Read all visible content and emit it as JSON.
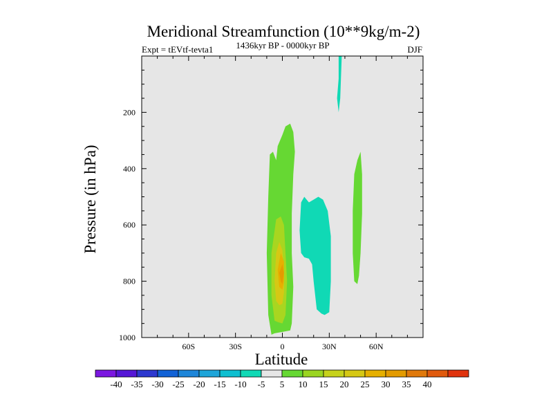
{
  "chart_data": {
    "type": "contour",
    "title": "Meridional Streamfunction (10**9kg/m-2)",
    "subtitle_left": "Expt = tEVtf-tevta1",
    "subtitle_center": "1436kyr BP - 0000kyr BP",
    "subtitle_right": "DJF",
    "xlabel": "Latitude",
    "ylabel": "Pressure (in hPa)",
    "xlim": [
      -90,
      90
    ],
    "ylim": [
      0,
      1000
    ],
    "y_inverted": true,
    "x_ticks": [
      {
        "value": -60,
        "label": "60S"
      },
      {
        "value": -30,
        "label": "30S"
      },
      {
        "value": 0,
        "label": "0"
      },
      {
        "value": 30,
        "label": "30N"
      },
      {
        "value": 60,
        "label": "60N"
      }
    ],
    "y_ticks": [
      {
        "value": 200,
        "label": "200"
      },
      {
        "value": 400,
        "label": "400"
      },
      {
        "value": 600,
        "label": "600"
      },
      {
        "value": 800,
        "label": "800"
      },
      {
        "value": 1000,
        "label": "1000"
      }
    ],
    "background_color": "#e6e6e6",
    "regions": [
      {
        "name": "equatorial-positive-outer",
        "level": 5,
        "color": "#66d833",
        "outline": [
          [
            -7,
            990
          ],
          [
            -9,
            920
          ],
          [
            -10,
            700
          ],
          [
            -9,
            500
          ],
          [
            -8,
            350
          ],
          [
            -6,
            340
          ],
          [
            -4,
            370
          ],
          [
            -3,
            320
          ],
          [
            0,
            280
          ],
          [
            2,
            250
          ],
          [
            5,
            240
          ],
          [
            7,
            270
          ],
          [
            8,
            340
          ],
          [
            7,
            420
          ],
          [
            6,
            560
          ],
          [
            6,
            700
          ],
          [
            7,
            820
          ],
          [
            6,
            950
          ],
          [
            5,
            975
          ],
          [
            0,
            980
          ],
          [
            -5,
            985
          ]
        ]
      },
      {
        "name": "equatorial-positive-10",
        "level": 10,
        "color": "#a8d620",
        "outline": [
          [
            -5,
            940
          ],
          [
            -7,
            850
          ],
          [
            -7,
            700
          ],
          [
            -4,
            580
          ],
          [
            -1,
            570
          ],
          [
            1,
            600
          ],
          [
            2,
            700
          ],
          [
            3,
            800
          ],
          [
            2,
            920
          ],
          [
            0,
            950
          ],
          [
            -3,
            945
          ]
        ]
      },
      {
        "name": "equatorial-positive-15",
        "level": 15,
        "color": "#d6c814",
        "outline": [
          [
            -4,
            870
          ],
          [
            -5,
            800
          ],
          [
            -4,
            700
          ],
          [
            -2,
            660
          ],
          [
            0,
            690
          ],
          [
            1,
            760
          ],
          [
            1,
            840
          ],
          [
            0,
            880
          ],
          [
            -2,
            885
          ]
        ]
      },
      {
        "name": "equatorial-positive-20",
        "level": 20,
        "color": "#e6b000",
        "outline": [
          [
            -2,
            820
          ],
          [
            -3,
            760
          ],
          [
            -1,
            700
          ],
          [
            1,
            730
          ],
          [
            1,
            800
          ],
          [
            0,
            830
          ]
        ]
      },
      {
        "name": "equatorial-positive-25",
        "level": 25,
        "color": "#e39b00",
        "outline": [
          [
            -1,
            800
          ],
          [
            -2,
            770
          ],
          [
            0,
            740
          ],
          [
            1,
            770
          ],
          [
            0,
            810
          ]
        ]
      },
      {
        "name": "subtropical-negative",
        "level": -5,
        "color": "#10d9b5",
        "outline": [
          [
            12,
            700
          ],
          [
            11,
            620
          ],
          [
            12,
            520
          ],
          [
            14,
            500
          ],
          [
            17,
            520
          ],
          [
            20,
            510
          ],
          [
            23,
            500
          ],
          [
            26,
            510
          ],
          [
            29,
            550
          ],
          [
            31,
            640
          ],
          [
            31,
            800
          ],
          [
            30,
            910
          ],
          [
            27,
            920
          ],
          [
            25,
            915
          ],
          [
            22,
            900
          ],
          [
            20,
            800
          ],
          [
            19,
            740
          ],
          [
            17,
            720
          ],
          [
            14,
            715
          ]
        ]
      },
      {
        "name": "upper-negative-streak",
        "level": -5,
        "color": "#10d9b5",
        "outline": [
          [
            36,
            0
          ],
          [
            38,
            0
          ],
          [
            37,
            150
          ],
          [
            36,
            200
          ],
          [
            35,
            150
          ],
          [
            36,
            80
          ]
        ]
      },
      {
        "name": "midlatitude-positive",
        "level": 5,
        "color": "#66d833",
        "outline": [
          [
            46,
            800
          ],
          [
            45,
            700
          ],
          [
            45,
            550
          ],
          [
            46,
            420
          ],
          [
            48,
            370
          ],
          [
            50,
            340
          ],
          [
            51,
            420
          ],
          [
            51,
            560
          ],
          [
            50,
            700
          ],
          [
            49,
            780
          ],
          [
            48,
            810
          ]
        ]
      }
    ],
    "colorbar": {
      "colors": [
        "#7b17e0",
        "#5516d6",
        "#2d38cf",
        "#1262d6",
        "#1e86d9",
        "#1ea5d9",
        "#0ebfd0",
        "#10d9b5",
        "#e6e6e6",
        "#66d833",
        "#9ad521",
        "#c6d21b",
        "#d6c814",
        "#e6b000",
        "#e39b00",
        "#e0790b",
        "#e05a0d",
        "#e0330d"
      ],
      "labels": [
        "-40",
        "-35",
        "-30",
        "-25",
        "-20",
        "-15",
        "-10",
        "-5",
        "5",
        "10",
        "15",
        "20",
        "25",
        "30",
        "35",
        "40"
      ]
    }
  }
}
